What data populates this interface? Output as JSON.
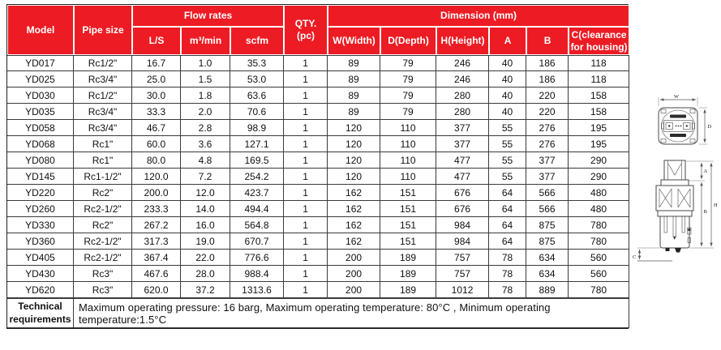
{
  "colors": {
    "header_red": "#ed1c24",
    "grid_dark": "#3a3a3a"
  },
  "table": {
    "header": {
      "model": "Model",
      "pipe_size": "Pipe size",
      "flow_rates": "Flow rates",
      "flow_sub": [
        "L/S",
        "m³/min",
        "scfm"
      ],
      "qty": "QTY. (pc)",
      "dimension": "Dimension (mm)",
      "dim_sub": [
        "W(Width)",
        "D(Depth)",
        "H(Height)",
        "A",
        "B",
        "C(clearance for housing)"
      ]
    },
    "rows": [
      [
        "YD017",
        "Rc1/2\"",
        "16.7",
        "1.0",
        "35.3",
        "1",
        "89",
        "79",
        "246",
        "40",
        "186",
        "118"
      ],
      [
        "YD025",
        "Rc3/4\"",
        "25.0",
        "1.5",
        "53.0",
        "1",
        "89",
        "79",
        "246",
        "40",
        "186",
        "118"
      ],
      [
        "YD030",
        "Rc1/2\"",
        "30.0",
        "1.8",
        "63.6",
        "1",
        "89",
        "79",
        "280",
        "40",
        "220",
        "158"
      ],
      [
        "YD035",
        "Rc3/4\"",
        "33.3",
        "2.0",
        "70.6",
        "1",
        "89",
        "79",
        "280",
        "40",
        "220",
        "158"
      ],
      [
        "YD058",
        "Rc3/4\"",
        "46.7",
        "2.8",
        "98.9",
        "1",
        "120",
        "110",
        "377",
        "55",
        "276",
        "195"
      ],
      [
        "YD068",
        "Rc1\"",
        "60.0",
        "3.6",
        "127.1",
        "1",
        "120",
        "110",
        "377",
        "55",
        "276",
        "195"
      ],
      [
        "YD080",
        "Rc1\"",
        "80.0",
        "4.8",
        "169.5",
        "1",
        "120",
        "110",
        "477",
        "55",
        "377",
        "290"
      ],
      [
        "YD145",
        "Rc1-1/2\"",
        "120.0",
        "7.2",
        "254.2",
        "1",
        "120",
        "110",
        "477",
        "55",
        "377",
        "290"
      ],
      [
        "YD220",
        "Rc2\"",
        "200.0",
        "12.0",
        "423.7",
        "1",
        "162",
        "151",
        "676",
        "64",
        "566",
        "480"
      ],
      [
        "YD260",
        "Rc2-1/2\"",
        "233.3",
        "14.0",
        "494.4",
        "1",
        "162",
        "151",
        "676",
        "64",
        "566",
        "480"
      ],
      [
        "YD330",
        "Rc2\"",
        "267.2",
        "16.0",
        "564.8",
        "1",
        "162",
        "151",
        "984",
        "64",
        "875",
        "780"
      ],
      [
        "YD360",
        "Rc2-1/2\"",
        "317.3",
        "19.0",
        "670.7",
        "1",
        "162",
        "151",
        "984",
        "64",
        "875",
        "780"
      ],
      [
        "YD405",
        "Rc2-1/2\"",
        "367.4",
        "22.0",
        "776.6",
        "1",
        "200",
        "189",
        "757",
        "78",
        "634",
        "560"
      ],
      [
        "YD430",
        "Rc3\"",
        "467.6",
        "28.0",
        "988.4",
        "1",
        "200",
        "189",
        "757",
        "78",
        "634",
        "560"
      ],
      [
        "YD620",
        "Rc3\"",
        "620.0",
        "37.2",
        "1313.6",
        "1",
        "200",
        "189",
        "1012",
        "78",
        "889",
        "780"
      ]
    ],
    "footer": {
      "label": "Technical requirements",
      "text": "Maximum operating pressure: 16 barg,  Maximum operating temperature: 80°C , Minimum operating temperature:1.5°C"
    }
  },
  "diagram": {
    "labels": {
      "w": "W",
      "d": "D",
      "a": "A",
      "b": "B",
      "h": "H",
      "c": "C"
    }
  }
}
